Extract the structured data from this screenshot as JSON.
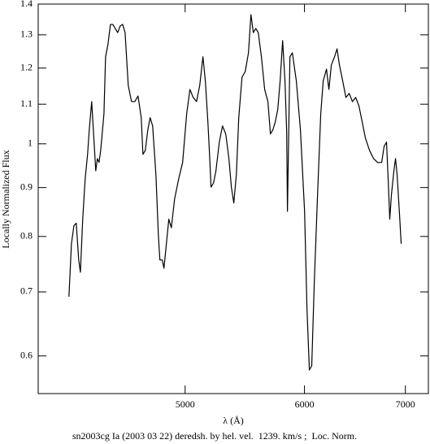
{
  "chart_data": {
    "type": "line",
    "xlabel": "λ (Å)",
    "ylabel": "Locally Normalized Flux",
    "caption": "sn2003cg Ia (2003 03 22) deredsh. by hel. vel.  1239. km/s ;  Loc. Norm.",
    "xscale": "log",
    "yscale": "log",
    "xlim": [
      3995,
      7250
    ],
    "ylim": [
      0.548,
      1.4
    ],
    "xticks": [
      5000,
      6000,
      7000
    ],
    "yticks": [
      0.6,
      0.7,
      0.8,
      0.9,
      1,
      1.1,
      1.2,
      1.3,
      1.4
    ],
    "color": "#000000",
    "x": [
      4187,
      4203,
      4219,
      4234,
      4250,
      4261,
      4276,
      4292,
      4308,
      4319,
      4335,
      4351,
      4362,
      4373,
      4384,
      4395,
      4417,
      4428,
      4444,
      4461,
      4477,
      4494,
      4511,
      4528,
      4545,
      4562,
      4584,
      4607,
      4630,
      4653,
      4676,
      4688,
      4705,
      4723,
      4740,
      4758,
      4782,
      4800,
      4811,
      4829,
      4841,
      4859,
      4877,
      4896,
      4920,
      4951,
      4981,
      5012,
      5037,
      5062,
      5088,
      5113,
      5138,
      5157,
      5177,
      5190,
      5202,
      5222,
      5241,
      5268,
      5294,
      5320,
      5346,
      5366,
      5386,
      5407,
      5427,
      5454,
      5481,
      5508,
      5529,
      5549,
      5570,
      5591,
      5618,
      5646,
      5674,
      5696,
      5717,
      5738,
      5760,
      5781,
      5803,
      5824,
      5839,
      5846,
      5853,
      5868,
      5890,
      5926,
      5963,
      6001,
      6023,
      6045,
      6067,
      6090,
      6121,
      6151,
      6174,
      6205,
      6228,
      6251,
      6282,
      6306,
      6329,
      6361,
      6392,
      6424,
      6456,
      6488,
      6520,
      6553,
      6585,
      6627,
      6668,
      6709,
      6751,
      6776,
      6801,
      6818,
      6835,
      6852,
      6878,
      6895,
      6912,
      6938,
      6955
    ],
    "values": [
      0.692,
      0.786,
      0.821,
      0.826,
      0.756,
      0.734,
      0.834,
      0.919,
      0.975,
      1.034,
      1.107,
      1.004,
      0.937,
      0.965,
      0.956,
      0.984,
      1.075,
      1.233,
      1.27,
      1.333,
      1.333,
      1.32,
      1.307,
      1.328,
      1.333,
      1.307,
      1.151,
      1.107,
      1.107,
      1.122,
      1.065,
      0.975,
      0.984,
      1.034,
      1.065,
      1.044,
      0.928,
      0.802,
      0.756,
      0.756,
      0.741,
      0.786,
      0.834,
      0.817,
      0.875,
      0.919,
      0.956,
      1.075,
      1.14,
      1.118,
      1.107,
      1.151,
      1.233,
      1.163,
      1.054,
      0.975,
      0.901,
      0.91,
      0.937,
      1.004,
      1.044,
      1.024,
      0.965,
      0.901,
      0.867,
      0.928,
      1.065,
      1.174,
      1.19,
      1.245,
      1.365,
      1.307,
      1.32,
      1.307,
      1.233,
      1.14,
      1.107,
      1.024,
      1.034,
      1.054,
      1.086,
      1.163,
      1.282,
      1.163,
      1.03,
      0.85,
      0.956,
      1.233,
      1.245,
      1.163,
      1.034,
      0.85,
      0.672,
      0.58,
      0.586,
      0.713,
      0.884,
      1.075,
      1.163,
      1.197,
      1.14,
      1.209,
      1.233,
      1.257,
      1.209,
      1.163,
      1.118,
      1.129,
      1.107,
      1.118,
      1.096,
      1.054,
      1.014,
      0.984,
      0.965,
      0.956,
      0.956,
      0.994,
      1.004,
      0.919,
      0.834,
      0.884,
      0.937,
      0.965,
      0.928,
      0.842,
      0.786
    ]
  }
}
